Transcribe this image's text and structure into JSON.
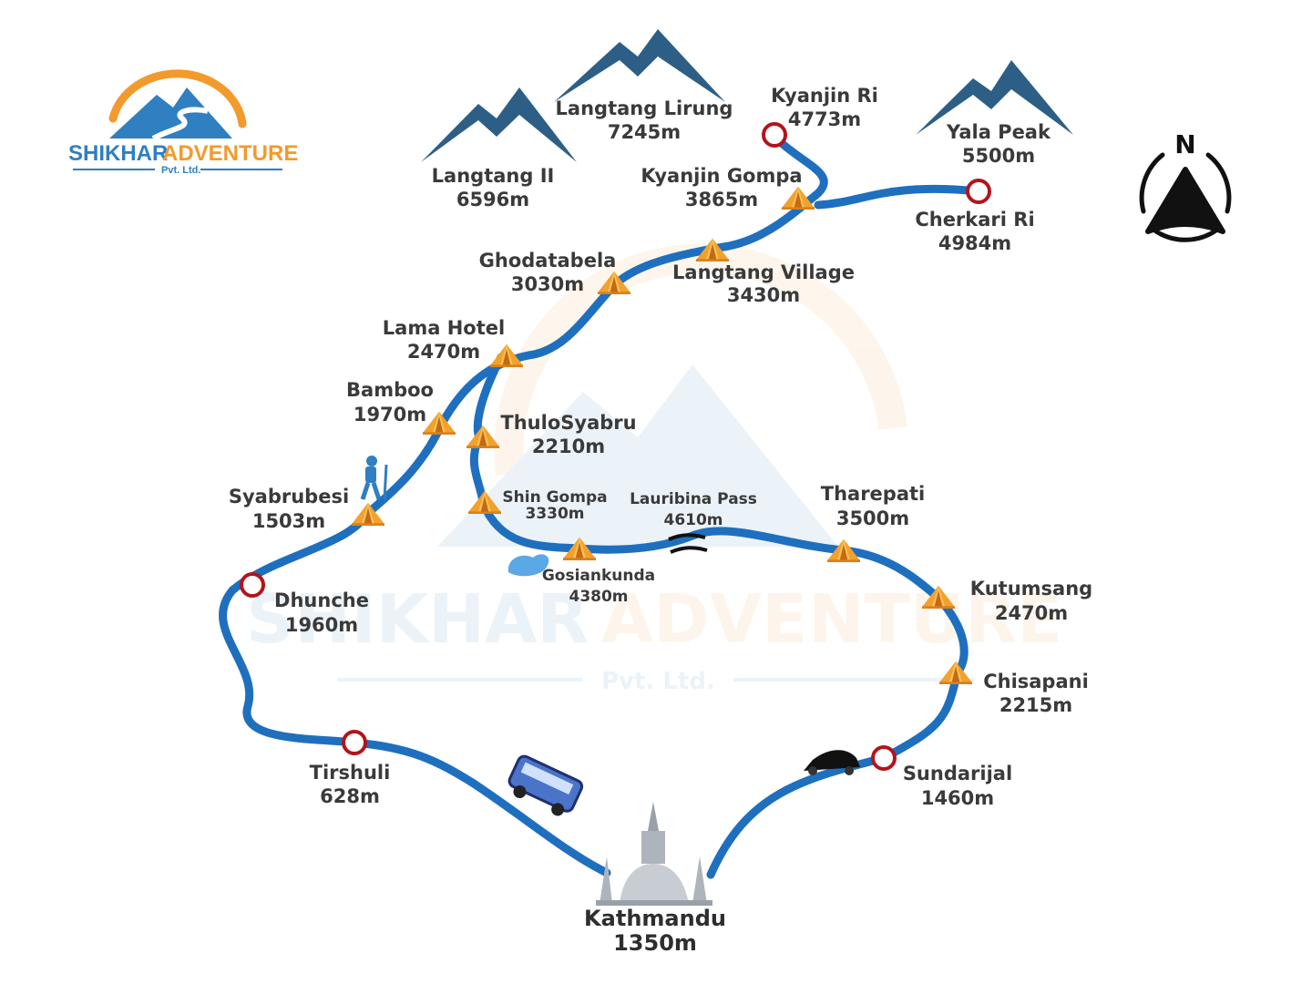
{
  "brand": {
    "logo_title_a": "SHIKHAR",
    "logo_title_b": "ADVENTURE",
    "logo_sub": "Pvt. Ltd.",
    "color_blue": "#2f7fc1",
    "color_orange": "#f39a2c"
  },
  "watermark": {
    "title_a": "SHIKHAR",
    "title_b": "ADVENTURE",
    "sub": "Pvt. Ltd."
  },
  "compass": {
    "letter": "N",
    "icon": "north-arrow-icon"
  },
  "colors": {
    "route": "#1f6fbf",
    "marker_ring": "#b3141c",
    "tent": "#f2a12c",
    "mountain_dark": "#2d5f86",
    "mountain_light": "#4f8fbf",
    "text": "#3a3a3a"
  },
  "peaks": [
    {
      "name": "Langtang II",
      "alt": "6596m"
    },
    {
      "name": "Langtang Lirung",
      "alt": "7245m"
    },
    {
      "name": "Yala Peak",
      "alt": "5500m"
    }
  ],
  "viewpoints": [
    {
      "name": "Kyanjin Ri",
      "alt": "4773m"
    },
    {
      "name": "Cherkari Ri",
      "alt": "4984m"
    },
    {
      "name": "Dhunche",
      "alt": "1960m"
    },
    {
      "name": "Tirshuli",
      "alt": "628m"
    },
    {
      "name": "Sundarijal",
      "alt": "1460m"
    }
  ],
  "camps": [
    {
      "name": "Kyanjin Gompa",
      "alt": "3865m"
    },
    {
      "name": "Langtang Village",
      "alt": "3430m"
    },
    {
      "name": "Ghodatabela",
      "alt": "3030m"
    },
    {
      "name": "Lama Hotel",
      "alt": "2470m"
    },
    {
      "name": "Bamboo",
      "alt": "1970m"
    },
    {
      "name": "ThuloSyabru",
      "alt": "2210m"
    },
    {
      "name": "Syabrubesi",
      "alt": "1503m"
    },
    {
      "name": "Shin Gompa",
      "alt": "3330m"
    },
    {
      "name": "Gosiankunda",
      "alt": "4380m"
    },
    {
      "name": "Tharepati",
      "alt": "3500m"
    },
    {
      "name": "Kutumsang",
      "alt": "2470m"
    },
    {
      "name": "Chisapani",
      "alt": "2215m"
    }
  ],
  "pass": {
    "name": "Lauribina Pass",
    "alt": "4610m"
  },
  "city": {
    "name": "Kathmandu",
    "alt": "1350m"
  },
  "transport": {
    "bus_icon": "bus-icon",
    "car_icon": "car-icon",
    "hiker_icon": "hiker-icon",
    "lake_icon": "lake-icon",
    "stupa_icon": "stupa-icon"
  }
}
